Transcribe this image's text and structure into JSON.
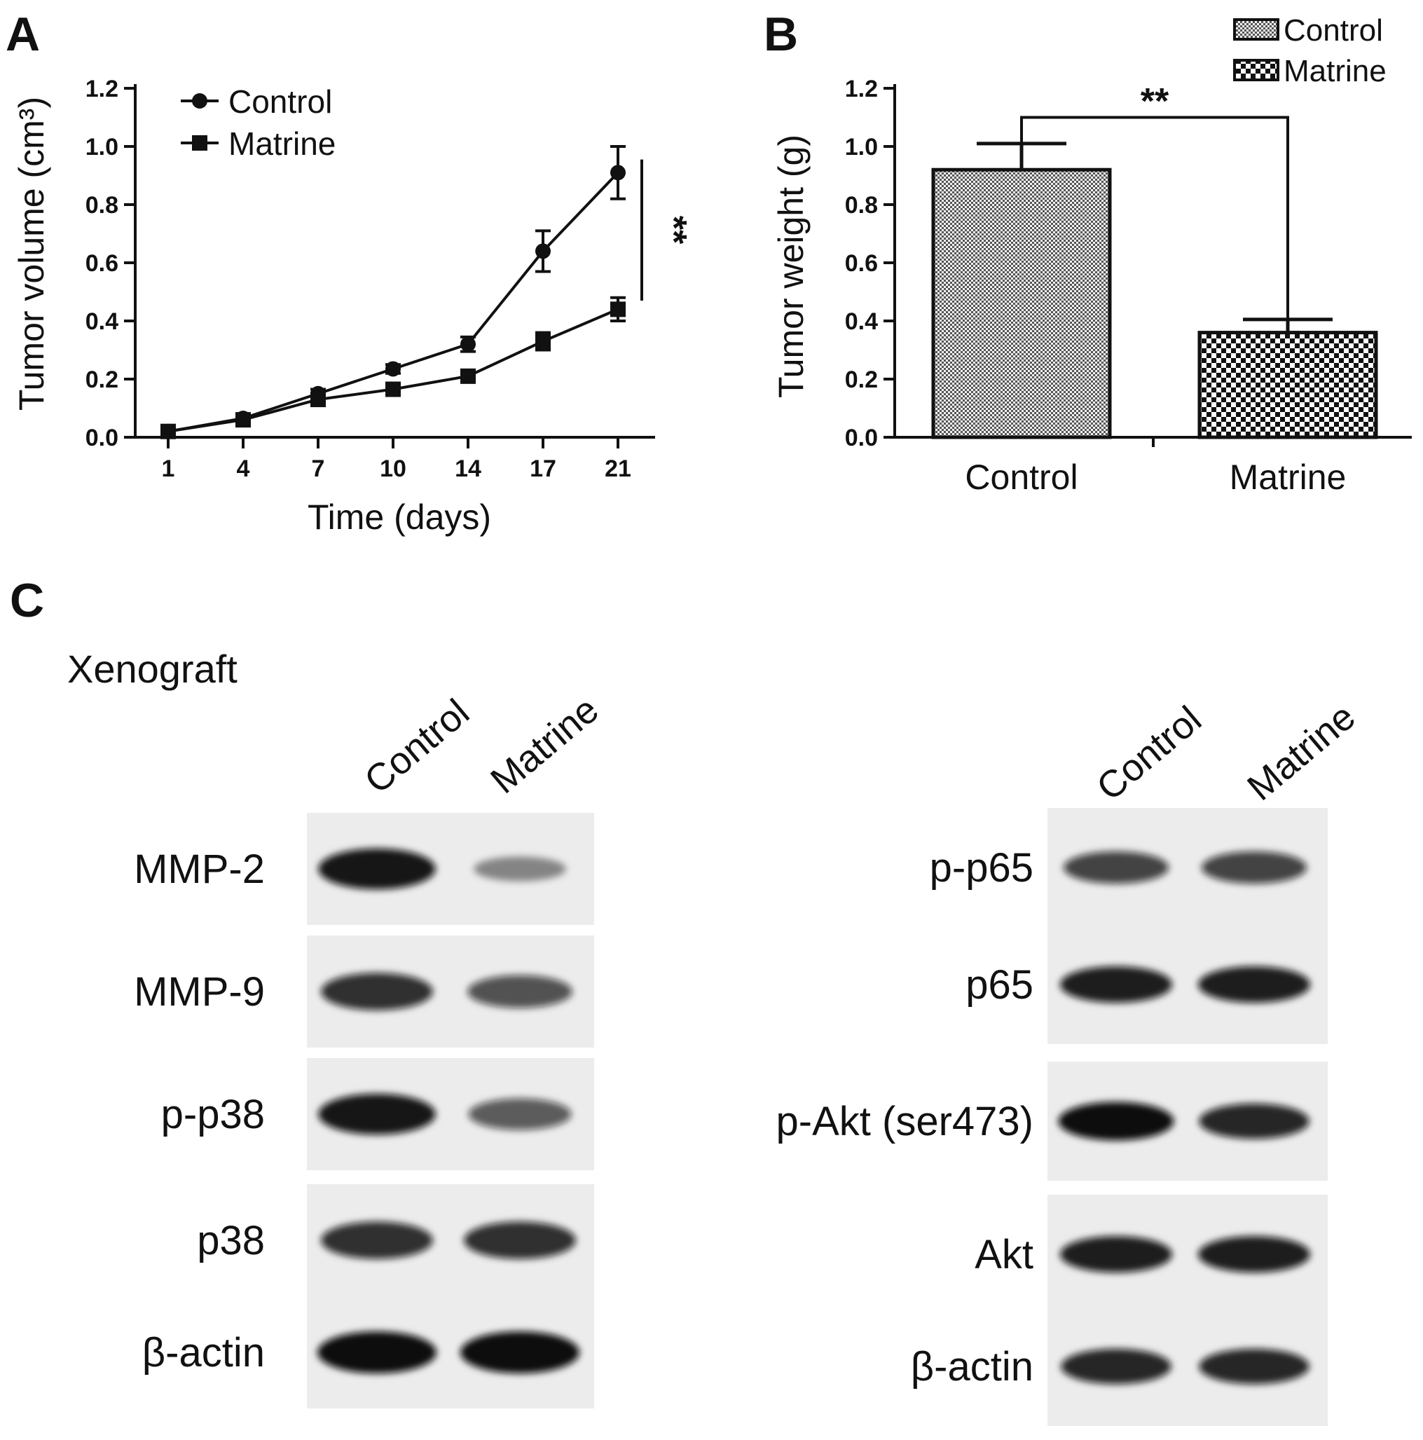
{
  "panels": {
    "a": "A",
    "b": "B",
    "c": "C"
  },
  "panel_c": {
    "group_label": "Xenograft",
    "left_blot": {
      "lanes": [
        "Control",
        "Matrine"
      ],
      "rows": [
        {
          "label": "MMP-2",
          "intensity": [
            0.95,
            0.25
          ]
        },
        {
          "label": "MMP-9",
          "intensity": [
            0.8,
            0.6
          ]
        },
        {
          "label": "p-p38",
          "intensity": [
            0.95,
            0.55
          ]
        },
        {
          "label": "p38",
          "intensity": [
            0.8,
            0.8
          ]
        },
        {
          "label": "β-actin",
          "intensity": [
            1.0,
            1.0
          ]
        }
      ]
    },
    "right_blot": {
      "lanes": [
        "Control",
        "Matrine"
      ],
      "rows": [
        {
          "label": "p-p65",
          "intensity": [
            0.7,
            0.7
          ]
        },
        {
          "label": "p65",
          "intensity": [
            0.9,
            0.9
          ]
        },
        {
          "label": "p-Akt (ser473)",
          "intensity": [
            1.0,
            0.85
          ]
        },
        {
          "label": "Akt",
          "intensity": [
            0.9,
            0.9
          ]
        },
        {
          "label": "β-actin",
          "intensity": [
            0.85,
            0.85
          ]
        }
      ]
    }
  },
  "chart_data": [
    {
      "type": "line",
      "panel": "A",
      "title": "",
      "xlabel": "Time (days)",
      "ylabel": "Tumor volume (cm³)",
      "x": [
        1,
        4,
        7,
        10,
        14,
        17,
        21
      ],
      "x_tick_labels": [
        "1",
        "4",
        "7",
        "10",
        "14",
        "17",
        "21"
      ],
      "ylim": [
        0.0,
        1.2
      ],
      "y_ticks": [
        "0.0",
        "0.2",
        "0.4",
        "0.6",
        "0.8",
        "1.0",
        "1.2"
      ],
      "series": [
        {
          "name": "Control",
          "marker": "circle",
          "values": [
            0.02,
            0.065,
            0.15,
            0.235,
            0.32,
            0.64,
            0.91
          ],
          "errors": [
            0.01,
            0.01,
            0.015,
            0.015,
            0.025,
            0.07,
            0.09
          ]
        },
        {
          "name": "Matrine",
          "marker": "square",
          "values": [
            0.02,
            0.06,
            0.13,
            0.165,
            0.21,
            0.33,
            0.44
          ],
          "errors": [
            0.01,
            0.01,
            0.015,
            0.015,
            0.015,
            0.03,
            0.04
          ]
        }
      ],
      "significance": "**",
      "legend": "top-left"
    },
    {
      "type": "bar",
      "panel": "B",
      "title": "",
      "xlabel": "",
      "ylabel": "Tumor weight (g)",
      "categories": [
        "Control",
        "Matrine"
      ],
      "ylim": [
        0.0,
        1.2
      ],
      "y_ticks": [
        "0.0",
        "0.2",
        "0.4",
        "0.6",
        "0.8",
        "1.0",
        "1.2"
      ],
      "values": [
        0.92,
        0.36
      ],
      "errors": [
        0.09,
        0.045
      ],
      "legend_entries": [
        "Control",
        "Matrine"
      ],
      "significance": "**",
      "legend": "top-right"
    }
  ]
}
